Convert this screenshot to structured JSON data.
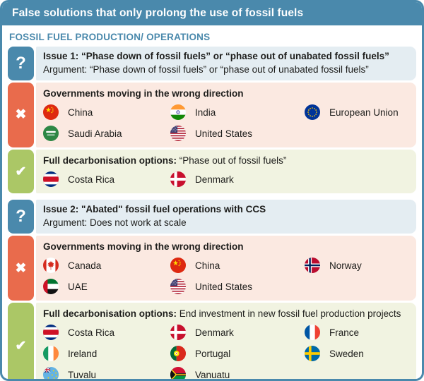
{
  "page": {
    "title": "False solutions that only prolong the use of fossil fuels",
    "section_header": "FOSSIL FUEL PRODUCTION/ OPERATIONS"
  },
  "colors": {
    "primary_blue": "#4a89ac",
    "issue_bg": "#e4edf2",
    "wrong_bar": "#e96b4c",
    "wrong_bg": "#fbe9e1",
    "good_bar": "#abc766",
    "good_bg": "#f1f3e1",
    "text": "#1d1d1b"
  },
  "icons": {
    "question_glyph": "?",
    "cross_glyph": "✖",
    "check_glyph": "✔"
  },
  "issues": [
    {
      "title": "Issue 1: “Phase down of fossil fuels” or “phase out of unabated fossil fuels”",
      "argument": "Argument: “Phase down of fossil fuels” or “phase out of unabated fossil fuels”",
      "wrong_direction": {
        "heading": "Governments moving in the wrong direction",
        "countries": [
          {
            "name": "China",
            "flag": "china"
          },
          {
            "name": "India",
            "flag": "india"
          },
          {
            "name": "European Union",
            "flag": "eu"
          },
          {
            "name": "Saudi Arabia",
            "flag": "saudi-arabia"
          },
          {
            "name": "United States",
            "flag": "united-states"
          }
        ]
      },
      "decarbonisation": {
        "heading_bold": "Full decarbonisation options:",
        "heading_rest": " “Phase out of fossil fuels”",
        "countries": [
          {
            "name": "Costa Rica",
            "flag": "costa-rica"
          },
          {
            "name": "Denmark",
            "flag": "denmark"
          }
        ]
      }
    },
    {
      "title": "Issue 2: \"Abated\" fossil fuel operations with CCS",
      "argument": "Argument: Does not work at scale",
      "wrong_direction": {
        "heading": "Governments moving in the wrong direction",
        "countries": [
          {
            "name": "Canada",
            "flag": "canada"
          },
          {
            "name": "China",
            "flag": "china"
          },
          {
            "name": "Norway",
            "flag": "norway"
          },
          {
            "name": "UAE",
            "flag": "uae"
          },
          {
            "name": "United States",
            "flag": "united-states"
          }
        ]
      },
      "decarbonisation": {
        "heading_bold": "Full decarbonisation options:",
        "heading_rest": " End investment in new fossil fuel production projects",
        "countries": [
          {
            "name": "Costa Rica",
            "flag": "costa-rica"
          },
          {
            "name": "Denmark",
            "flag": "denmark"
          },
          {
            "name": "France",
            "flag": "france"
          },
          {
            "name": "Ireland",
            "flag": "ireland"
          },
          {
            "name": "Portugal",
            "flag": "portugal"
          },
          {
            "name": "Sweden",
            "flag": "sweden"
          },
          {
            "name": "Tuvalu",
            "flag": "tuvalu"
          },
          {
            "name": "Vanuatu",
            "flag": "vanuatu"
          }
        ]
      }
    }
  ]
}
